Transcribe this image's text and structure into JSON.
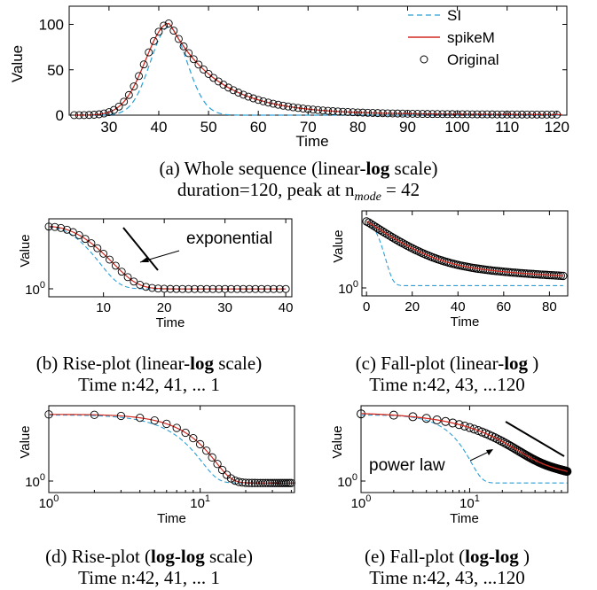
{
  "legend": [
    {
      "name": "SI",
      "color": "#2a9fd6",
      "style": "dashed"
    },
    {
      "name": "spikeM",
      "color": "#d22a20",
      "style": "solid"
    },
    {
      "name": "Original",
      "color": "#000000",
      "style": "circle"
    }
  ],
  "chart_data": [
    {
      "id": "a",
      "type": "line",
      "xlabel": "Time",
      "ylabel": "Value",
      "xlim": [
        22,
        122
      ],
      "ylim": [
        0,
        120
      ],
      "xticks": [
        "30",
        "40",
        "50",
        "60",
        "70",
        "80",
        "90",
        "100",
        "110",
        "120"
      ],
      "xtick_values": [
        30,
        40,
        50,
        60,
        70,
        80,
        90,
        100,
        110,
        120
      ],
      "yticks": [
        "0",
        "50",
        "100"
      ],
      "ytick_values": [
        0,
        50,
        100
      ],
      "caption_line1": "(a) Whole sequence (linear-",
      "caption_bold": "log",
      "caption_line1_end": " scale)",
      "caption_line2": "duration=120, peak at n",
      "caption_sub": "mode",
      "caption_line2_end": " = 42",
      "peak": 42,
      "peak_value": 101,
      "si_peak": 42,
      "si_peak_value": 97,
      "legend_position": "top-right"
    },
    {
      "id": "b",
      "type": "line",
      "xlabel": "Time",
      "ylabel": "Value",
      "xlim": [
        1,
        41
      ],
      "xticks": [
        "10",
        "20",
        "30",
        "40"
      ],
      "xtick_values": [
        10,
        20,
        30,
        40
      ],
      "ytick_label": "10",
      "ytick_exp": "0",
      "annotation": "exponential",
      "caption_line1": "(b) Rise-plot (linear-",
      "caption_bold": "log",
      "caption_line1_end": " scale)",
      "caption_line2": "Time n:42, 41, ... 1"
    },
    {
      "id": "c",
      "type": "line",
      "xlabel": "Time",
      "ylabel": "Value",
      "xlim": [
        -2,
        88
      ],
      "xticks": [
        "0",
        "20",
        "40",
        "60",
        "80"
      ],
      "xtick_values": [
        0,
        20,
        40,
        60,
        80
      ],
      "ytick_label": "10",
      "ytick_exp": "0",
      "caption_line1": "(c) Fall-plot (linear-",
      "caption_bold": "log",
      "caption_line1_end": " )",
      "caption_line2": "Time n:42, 43, ...120"
    },
    {
      "id": "d",
      "type": "line",
      "xlabel": "Time",
      "ylabel": "Value",
      "xscale": "log",
      "xlim": [
        1,
        42
      ],
      "xticks": [
        "10",
        "10"
      ],
      "xtick_exps": [
        "0",
        "1"
      ],
      "xtick_values": [
        1,
        10
      ],
      "ytick_label": "10",
      "ytick_exp": "0",
      "caption_line1": "(d) Rise-plot (",
      "caption_bold": "log-log",
      "caption_line1_end": " scale)",
      "caption_line2": "Time n:42, 41, ... 1"
    },
    {
      "id": "e",
      "type": "line",
      "xlabel": "Time",
      "ylabel": "Value",
      "xscale": "log",
      "xlim": [
        1,
        80
      ],
      "xticks": [
        "10",
        "10"
      ],
      "xtick_exps": [
        "0",
        "1"
      ],
      "xtick_values": [
        1,
        10
      ],
      "ytick_label": "10",
      "ytick_exp": "0",
      "annotation": "power law",
      "caption_line1": "(e) Fall-plot (",
      "caption_bold": "log-log",
      "caption_line1_end": " )",
      "caption_line2": "Time n:42, 43, ...120"
    }
  ]
}
